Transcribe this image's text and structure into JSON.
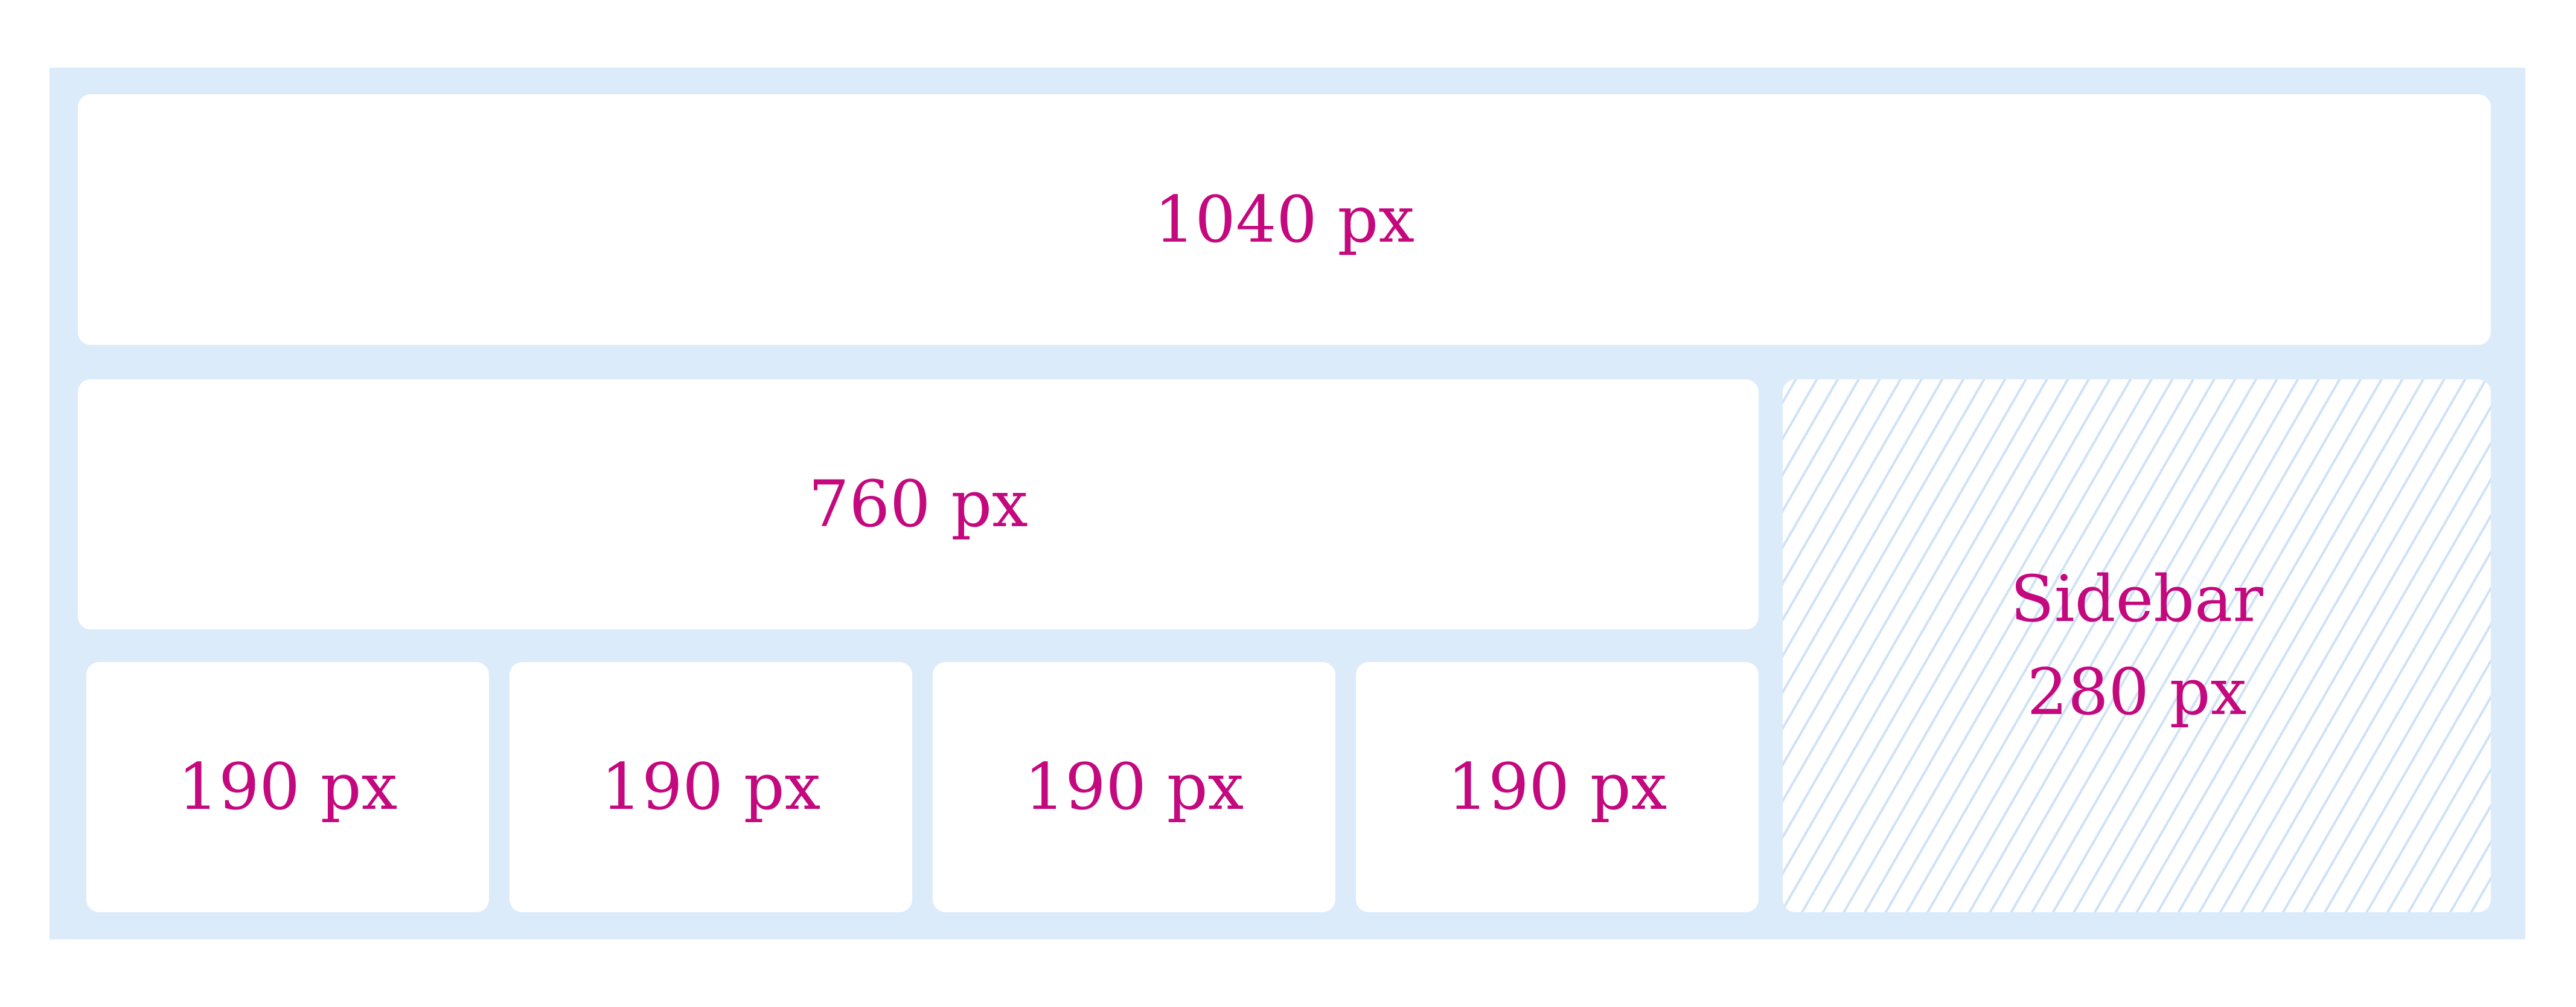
{
  "colors": {
    "background": "#ffffff",
    "frame": "#dcebfa",
    "box": "#ffffff",
    "text": "#c4087e",
    "hatch": "#cfe2f5"
  },
  "full_width_row": {
    "label": "1040 px"
  },
  "main_row": {
    "label": "760 px"
  },
  "columns": [
    {
      "label": "190 px"
    },
    {
      "label": "190 px"
    },
    {
      "label": "190 px"
    },
    {
      "label": "190 px"
    }
  ],
  "sidebar": {
    "title": "Sidebar",
    "width_label": "280 px"
  }
}
